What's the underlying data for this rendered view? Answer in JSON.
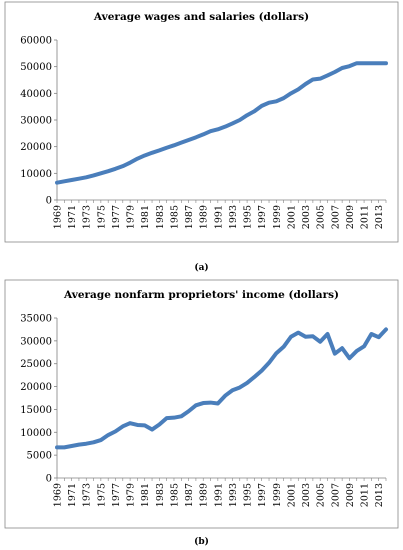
{
  "chart_data": [
    {
      "type": "line",
      "title": "Average wages and salaries (dollars)",
      "caption": "(a)",
      "line_color": "#4a7ebb",
      "ylim": [
        0,
        60000
      ],
      "yticks": [
        0,
        10000,
        20000,
        30000,
        40000,
        50000,
        60000
      ],
      "xtick_labels": [
        "1969",
        "1971",
        "1973",
        "1975",
        "1977",
        "1979",
        "1981",
        "1983",
        "1985",
        "1987",
        "1989",
        "1991",
        "1993",
        "1995",
        "1997",
        "1999",
        "2001",
        "2003",
        "2005",
        "2007",
        "2009",
        "2011",
        "2013"
      ],
      "x": [
        1969,
        1970,
        1971,
        1972,
        1973,
        1974,
        1975,
        1976,
        1977,
        1978,
        1979,
        1980,
        1981,
        1982,
        1983,
        1984,
        1985,
        1986,
        1987,
        1988,
        1989,
        1990,
        1991,
        1992,
        1993,
        1994,
        1995,
        1996,
        1997,
        1998,
        1999,
        2000,
        2001,
        2002,
        2003,
        2004,
        2005,
        2006,
        2007,
        2008,
        2009,
        2010,
        2011,
        2012,
        2013,
        2014
      ],
      "series": [
        {
          "values": [
            6500,
            7000,
            7500,
            8000,
            8500,
            9200,
            10000,
            10800,
            11700,
            12700,
            14000,
            15500,
            16700,
            17700,
            18600,
            19600,
            20500,
            21500,
            22500,
            23500,
            24600,
            25800,
            26500,
            27500,
            28700,
            30000,
            31800,
            33300,
            35300,
            36500,
            37000,
            38200,
            40000,
            41500,
            43500,
            45200,
            45500,
            46700,
            48000,
            49500,
            50200,
            51300,
            51300,
            51300,
            51300,
            51300
          ]
        }
      ]
    },
    {
      "type": "line",
      "title": "Average nonfarm proprietors' income (dollars)",
      "caption": "(b)",
      "line_color": "#4a7ebb",
      "ylim": [
        0,
        35000
      ],
      "yticks": [
        0,
        5000,
        10000,
        15000,
        20000,
        25000,
        30000,
        35000
      ],
      "xtick_labels": [
        "1969",
        "1971",
        "1973",
        "1975",
        "1977",
        "1979",
        "1981",
        "1983",
        "1985",
        "1987",
        "1989",
        "1991",
        "1993",
        "1995",
        "1997",
        "1999",
        "2001",
        "2003",
        "2005",
        "2007",
        "2009",
        "2011",
        "2013"
      ],
      "x": [
        1969,
        1970,
        1971,
        1972,
        1973,
        1974,
        1975,
        1976,
        1977,
        1978,
        1979,
        1980,
        1981,
        1982,
        1983,
        1984,
        1985,
        1986,
        1987,
        1988,
        1989,
        1990,
        1991,
        1992,
        1993,
        1994,
        1995,
        1996,
        1997,
        1998,
        1999,
        2000,
        2001,
        2002,
        2003,
        2004,
        2005,
        2006,
        2007,
        2008,
        2009,
        2010,
        2011,
        2012,
        2013,
        2014
      ],
      "series": [
        {
          "values": [
            6700,
            6700,
            7000,
            7300,
            7500,
            7800,
            8300,
            9400,
            10200,
            11300,
            12000,
            11600,
            11500,
            10600,
            11700,
            13100,
            13200,
            13500,
            14600,
            15900,
            16400,
            16500,
            16300,
            18000,
            19200,
            19800,
            20800,
            22100,
            23500,
            25200,
            27300,
            28700,
            30900,
            31800,
            30900,
            31000,
            29800,
            31500,
            27200,
            28400,
            26200,
            27800,
            28800,
            31500,
            30800,
            32500
          ]
        }
      ]
    }
  ]
}
